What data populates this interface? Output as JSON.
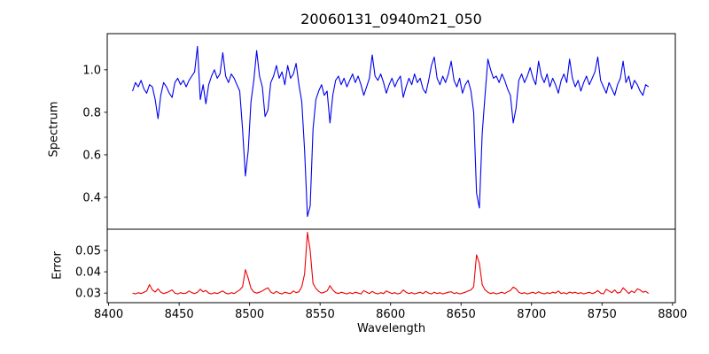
{
  "figure": {
    "title": "20060131_0940m21_050",
    "xlabel": "Wavelength",
    "background": "#ffffff",
    "frame_color": "#000000"
  },
  "chart_data": [
    {
      "type": "line",
      "name": "spectrum",
      "title": "20060131_0940m21_050",
      "ylabel": "Spectrum",
      "line_color": "#0000ee",
      "grid": false,
      "legend": "none",
      "xlim": [
        8399,
        8802
      ],
      "ylim": [
        0.25,
        1.17
      ],
      "yticks": [
        "0.4",
        "0.6",
        "0.8",
        "1.0"
      ],
      "absorption_lines": [
        {
          "wavelength": 8435,
          "depth": 0.77
        },
        {
          "wavelength": 8497,
          "depth": 0.5
        },
        {
          "wavelength": 8511,
          "depth": 0.78
        },
        {
          "wavelength": 8541,
          "depth": 0.31
        },
        {
          "wavelength": 8557,
          "depth": 0.75
        },
        {
          "wavelength": 8662,
          "depth": 0.35
        },
        {
          "wavelength": 8687,
          "depth": 0.75
        }
      ],
      "x_start": 8417,
      "x_step": 2,
      "values": [
        0.9,
        0.94,
        0.92,
        0.95,
        0.91,
        0.89,
        0.93,
        0.92,
        0.86,
        0.77,
        0.88,
        0.94,
        0.92,
        0.89,
        0.87,
        0.94,
        0.96,
        0.93,
        0.95,
        0.92,
        0.95,
        0.97,
        0.99,
        1.11,
        0.86,
        0.93,
        0.84,
        0.93,
        0.97,
        1.0,
        0.96,
        0.98,
        1.08,
        0.97,
        0.94,
        0.98,
        0.96,
        0.93,
        0.9,
        0.72,
        0.5,
        0.62,
        0.85,
        0.95,
        1.09,
        0.97,
        0.92,
        0.78,
        0.81,
        0.94,
        0.97,
        1.02,
        0.96,
        0.99,
        0.93,
        1.02,
        0.96,
        0.98,
        1.03,
        0.93,
        0.85,
        0.62,
        0.31,
        0.36,
        0.72,
        0.86,
        0.9,
        0.93,
        0.88,
        0.9,
        0.75,
        0.88,
        0.95,
        0.97,
        0.93,
        0.96,
        0.92,
        0.95,
        0.98,
        0.94,
        0.97,
        0.93,
        0.88,
        0.92,
        0.96,
        1.07,
        0.97,
        0.95,
        0.98,
        0.94,
        0.89,
        0.93,
        0.96,
        0.92,
        0.95,
        0.97,
        0.87,
        0.92,
        0.96,
        0.93,
        0.98,
        0.94,
        0.96,
        0.91,
        0.89,
        0.95,
        1.02,
        1.06,
        0.96,
        0.93,
        0.97,
        0.94,
        0.98,
        1.04,
        0.95,
        0.92,
        0.96,
        0.89,
        0.93,
        0.95,
        0.9,
        0.8,
        0.42,
        0.35,
        0.7,
        0.88,
        1.05,
        1.0,
        0.96,
        0.97,
        0.94,
        0.98,
        0.95,
        0.91,
        0.88,
        0.75,
        0.82,
        0.95,
        0.98,
        0.94,
        0.97,
        1.01,
        0.96,
        0.93,
        1.04,
        0.97,
        0.94,
        0.98,
        0.92,
        0.96,
        0.93,
        0.89,
        0.95,
        0.98,
        0.94,
        1.05,
        0.96,
        0.92,
        0.95,
        0.9,
        0.94,
        0.97,
        0.93,
        0.96,
        0.99,
        1.06,
        0.95,
        0.92,
        0.89,
        0.94,
        0.91,
        0.88,
        0.93,
        0.96,
        1.04,
        0.94,
        0.97,
        0.91,
        0.95,
        0.93,
        0.9,
        0.88,
        0.93,
        0.92
      ]
    },
    {
      "type": "line",
      "name": "error",
      "ylabel": "Error",
      "xlabel": "Wavelength",
      "line_color": "#ee0000",
      "grid": false,
      "legend": "none",
      "xlim": [
        8399,
        8802
      ],
      "ylim": [
        0.0255,
        0.06
      ],
      "yticks": [
        "0.03",
        "0.04",
        "0.05"
      ],
      "xticks": [
        "8400",
        "8450",
        "8500",
        "8550",
        "8600",
        "8650",
        "8700",
        "8750",
        "8800"
      ],
      "error_peaks": [
        {
          "wavelength": 8429,
          "value": 0.034
        },
        {
          "wavelength": 8497,
          "value": 0.041
        },
        {
          "wavelength": 8541,
          "value": 0.0585
        },
        {
          "wavelength": 8661,
          "value": 0.048
        }
      ],
      "x_start": 8417,
      "x_step": 2,
      "values": [
        0.03,
        0.0296,
        0.0302,
        0.0298,
        0.0304,
        0.031,
        0.034,
        0.0315,
        0.0305,
        0.032,
        0.0304,
        0.0298,
        0.0302,
        0.0308,
        0.0315,
        0.03,
        0.0296,
        0.0302,
        0.0298,
        0.03,
        0.031,
        0.0302,
        0.0298,
        0.0304,
        0.0318,
        0.0306,
        0.0312,
        0.03,
        0.0296,
        0.0302,
        0.0298,
        0.0304,
        0.031,
        0.03,
        0.0296,
        0.0302,
        0.0298,
        0.0306,
        0.0315,
        0.033,
        0.041,
        0.037,
        0.0322,
        0.0305,
        0.03,
        0.0304,
        0.031,
        0.0318,
        0.0325,
        0.0305,
        0.0298,
        0.0308,
        0.03,
        0.0296,
        0.0304,
        0.03,
        0.0298,
        0.031,
        0.0302,
        0.0306,
        0.033,
        0.039,
        0.0585,
        0.05,
        0.0345,
        0.0322,
        0.0308,
        0.03,
        0.0304,
        0.031,
        0.0335,
        0.0315,
        0.0302,
        0.0298,
        0.0304,
        0.03,
        0.0296,
        0.0302,
        0.0298,
        0.0304,
        0.03,
        0.0296,
        0.0312,
        0.0304,
        0.0298,
        0.0308,
        0.03,
        0.0296,
        0.0302,
        0.0298,
        0.031,
        0.0304,
        0.0298,
        0.0302,
        0.0296,
        0.03,
        0.0315,
        0.0304,
        0.0298,
        0.0302,
        0.0296,
        0.03,
        0.0304,
        0.0298,
        0.0308,
        0.03,
        0.0296,
        0.0304,
        0.0298,
        0.0302,
        0.0296,
        0.03,
        0.0304,
        0.0306,
        0.0298,
        0.0302,
        0.0296,
        0.03,
        0.0304,
        0.031,
        0.0315,
        0.033,
        0.048,
        0.044,
        0.034,
        0.0315,
        0.0304,
        0.0298,
        0.0302,
        0.0296,
        0.03,
        0.0304,
        0.0298,
        0.0306,
        0.0312,
        0.0328,
        0.032,
        0.0304,
        0.0298,
        0.0302,
        0.0296,
        0.03,
        0.0304,
        0.0298,
        0.0306,
        0.03,
        0.0296,
        0.0302,
        0.0298,
        0.0304,
        0.03,
        0.031,
        0.0298,
        0.0302,
        0.0296,
        0.0305,
        0.03,
        0.0304,
        0.0298,
        0.0302,
        0.0296,
        0.03,
        0.0304,
        0.0298,
        0.0302,
        0.0312,
        0.03,
        0.0296,
        0.0318,
        0.031,
        0.0302,
        0.0315,
        0.03,
        0.0304,
        0.0325,
        0.0312,
        0.0298,
        0.031,
        0.0302,
        0.032,
        0.0315,
        0.0304,
        0.0308,
        0.0298
      ]
    }
  ]
}
